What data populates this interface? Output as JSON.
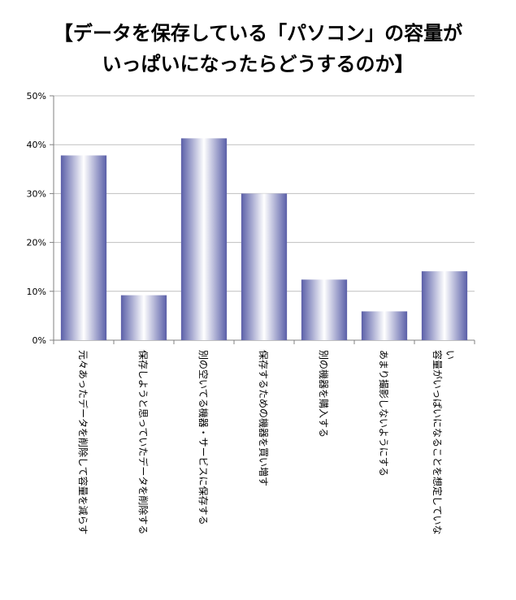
{
  "chart_data": {
    "type": "bar",
    "title_lines": [
      "【データを保存している「パソコン」の容量が",
      "いっぱいになったらどうするのか】"
    ],
    "categories": [
      [
        "元々あったデータを削除して容量を減らす"
      ],
      [
        "保存しようと思っていたデータを削除する"
      ],
      [
        "別の空いてる機器・サービスに保存する"
      ],
      [
        "保存するための機器を買い増す"
      ],
      [
        "別の機器を購入する"
      ],
      [
        "あまり撮影しないようにする"
      ],
      [
        "容量がいっぱいになることを想定していな",
        "い"
      ]
    ],
    "values": [
      37.8,
      9.2,
      41.3,
      30.0,
      12.4,
      5.9,
      14.1
    ],
    "ylim": [
      0,
      50
    ],
    "yticks": [
      "0%",
      "10%",
      "20%",
      "30%",
      "40%",
      "50%"
    ],
    "ytick_values": [
      0,
      10,
      20,
      30,
      40,
      50
    ],
    "grid": true,
    "bar_color_dark": "#5a5fa8",
    "bar_color_light": "#ffffff",
    "axis_color": "#808080",
    "grid_color": "#c0c0c0"
  }
}
